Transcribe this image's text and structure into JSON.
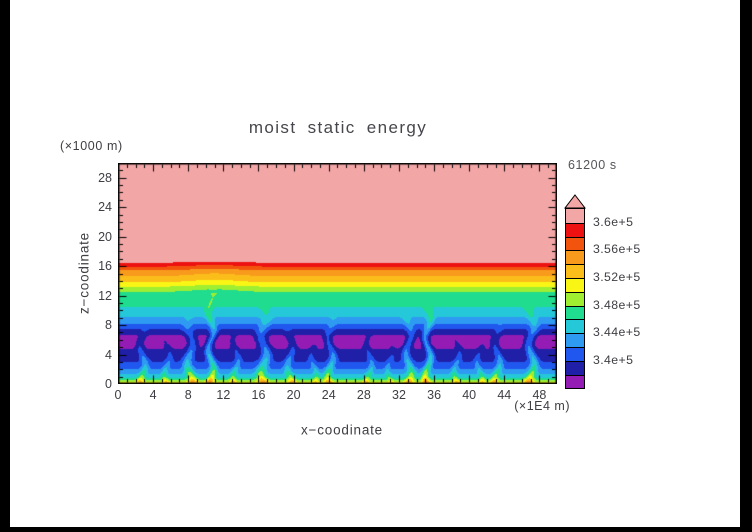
{
  "chart_data": {
    "type": "filled_contour",
    "title": "moist static energy",
    "xlabel": "x−coodinate",
    "ylabel": "z−coodinate",
    "x_unit_label": "(×1E4 m)",
    "y_unit_label": "(×1000 m)",
    "time_label": "61200 s",
    "xlim": [
      0,
      50
    ],
    "ylim": [
      0,
      30
    ],
    "x_major_ticks": [
      0,
      4,
      8,
      12,
      16,
      20,
      24,
      28,
      32,
      36,
      40,
      44,
      48
    ],
    "y_major_ticks": [
      0,
      4,
      8,
      12,
      16,
      20,
      24,
      28
    ],
    "minor_tick_step": 1,
    "grid": false,
    "legend_position": "right-colorbar",
    "levels": [
      336000,
      338000,
      340000,
      342000,
      344000,
      346000,
      348000,
      350000,
      352000,
      354000,
      356000,
      358000,
      360000,
      362000
    ],
    "colors_low_to_high": [
      "#941cb4",
      "#1f1fa8",
      "#2057ee",
      "#2e9af2",
      "#25c8d8",
      "#1fdc8e",
      "#9fee32",
      "#f9f616",
      "#fbbd1a",
      "#f89b1c",
      "#f2540e",
      "#ee1111",
      "#f3a6a6"
    ],
    "over_range_color": "#f3a6a6",
    "colorbar_labels": [
      {
        "value": 360000,
        "label": "3.6e+5"
      },
      {
        "value": 356000,
        "label": "3.56e+5"
      },
      {
        "value": 352000,
        "label": "3.52e+5"
      },
      {
        "value": 348000,
        "label": "3.48e+5"
      },
      {
        "value": 344000,
        "label": "3.44e+5"
      },
      {
        "value": 340000,
        "label": "3.4e+5"
      }
    ],
    "field": {
      "seed": 11,
      "profile_z_v1e5": [
        [
          0,
          3.535
        ],
        [
          0.25,
          3.514
        ],
        [
          0.55,
          3.492
        ],
        [
          1,
          3.464
        ],
        [
          1.6,
          3.448
        ],
        [
          2.5,
          3.426
        ],
        [
          3.5,
          3.414
        ],
        [
          4.5,
          3.403
        ],
        [
          5.5,
          3.394
        ],
        [
          6.5,
          3.398
        ],
        [
          7.5,
          3.416
        ],
        [
          8.5,
          3.438
        ],
        [
          9.6,
          3.455
        ],
        [
          10.6,
          3.466
        ],
        [
          11.8,
          3.474
        ],
        [
          12.6,
          3.486
        ],
        [
          13.1,
          3.5
        ],
        [
          13.6,
          3.517
        ],
        [
          14.1,
          3.531
        ],
        [
          14.8,
          3.547
        ],
        [
          15.5,
          3.566
        ],
        [
          16.05,
          3.588
        ],
        [
          16.55,
          3.606
        ],
        [
          17.2,
          3.613
        ],
        [
          30,
          3.617
        ]
      ],
      "noise": {
        "xscale": 3.2,
        "zscale": 1.35,
        "octaves": 3,
        "envelope_z_amp": [
          [
            0,
            0.008
          ],
          [
            0.8,
            0.013
          ],
          [
            2,
            0.018
          ],
          [
            3.5,
            0.021
          ],
          [
            6.5,
            0.021
          ],
          [
            7.5,
            0.015
          ],
          [
            8.5,
            0.009
          ],
          [
            10,
            0.005
          ],
          [
            12,
            0.0045
          ],
          [
            13,
            0.004
          ],
          [
            16.3,
            0.0035
          ],
          [
            17.3,
            0.0012
          ],
          [
            30,
            0.0008
          ]
        ]
      },
      "band_disturb": {
        "x": 11,
        "spread": 2.2,
        "amp": 0.009,
        "zlo": 12.3,
        "zhi": 16.6
      },
      "plumes_x_w_s_h": [
        [
          2.8,
          0.3,
          0.04,
          8
        ],
        [
          5.6,
          0.26,
          0.03,
          6.5
        ],
        [
          8.2,
          0.38,
          0.052,
          9.5
        ],
        [
          10.6,
          0.3,
          0.06,
          13
        ],
        [
          13.4,
          0.26,
          0.034,
          7
        ],
        [
          16.6,
          0.42,
          0.055,
          11
        ],
        [
          19.6,
          0.3,
          0.038,
          8
        ],
        [
          22.3,
          0.24,
          0.028,
          6
        ],
        [
          24.2,
          0.32,
          0.046,
          9.5
        ],
        [
          28.6,
          0.26,
          0.032,
          7
        ],
        [
          31,
          0.22,
          0.026,
          5.5
        ],
        [
          33.1,
          0.34,
          0.05,
          10.5
        ],
        [
          35.3,
          0.3,
          0.062,
          12.5
        ],
        [
          38.6,
          0.26,
          0.032,
          6.5
        ],
        [
          41.2,
          0.24,
          0.03,
          6
        ],
        [
          43.2,
          0.3,
          0.042,
          8.5
        ],
        [
          47.1,
          0.36,
          0.056,
          11.5
        ]
      ],
      "surface_noise": {
        "xscale": 1.2,
        "amp": 0.018,
        "depth": 0.32
      }
    }
  }
}
